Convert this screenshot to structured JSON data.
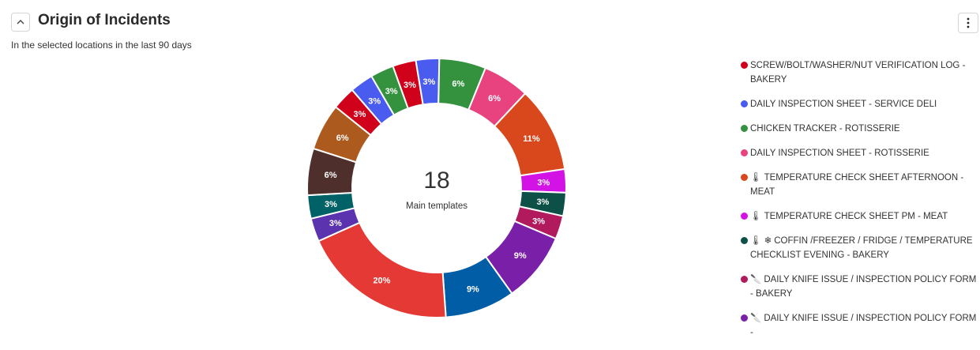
{
  "header": {
    "title": "Origin of Incidents",
    "subtitle": "In the selected locations in the last 90 days",
    "collapse_icon": "chevron-up-icon",
    "menu_icon": "kebab-menu-icon"
  },
  "center": {
    "value": "18",
    "label": "Main templates"
  },
  "chart_data": {
    "type": "pie",
    "donut": true,
    "slices": [
      {
        "label": "3%",
        "value": 3,
        "color": "#d0021b"
      },
      {
        "label": "3%",
        "value": 3,
        "color": "#4a5cf0"
      },
      {
        "label": "6%",
        "value": 6,
        "color": "#34923f"
      },
      {
        "label": "6%",
        "value": 6,
        "color": "#e8437e"
      },
      {
        "label": "11%",
        "value": 11,
        "color": "#d9481c"
      },
      {
        "label": "3%",
        "value": 3,
        "color": "#d313e6"
      },
      {
        "label": "3%",
        "value": 3,
        "color": "#0c5047"
      },
      {
        "label": "3%",
        "value": 3,
        "color": "#b11a5c"
      },
      {
        "label": "9%",
        "value": 9,
        "color": "#7a1fa8"
      },
      {
        "label": "9%",
        "value": 9,
        "color": "#005da6"
      },
      {
        "label": "20%",
        "value": 20,
        "color": "#e53935"
      },
      {
        "label": "3%",
        "value": 3,
        "color": "#5c33ae"
      },
      {
        "label": "3%",
        "value": 3,
        "color": "#006266"
      },
      {
        "label": "6%",
        "value": 6,
        "color": "#4e2f2c"
      },
      {
        "label": "6%",
        "value": 6,
        "color": "#ad5a1f"
      },
      {
        "label": "3%",
        "value": 3,
        "color": "#d0021b"
      },
      {
        "label": "3%",
        "value": 3,
        "color": "#4a5cf0"
      },
      {
        "label": "3%",
        "value": 3,
        "color": "#34923f"
      }
    ],
    "legend": [
      {
        "text": "SCREW/BOLT/WASHER/NUT VERIFICATION LOG - BAKERY",
        "color": "#d0021b",
        "glyphs": []
      },
      {
        "text": "DAILY INSPECTION SHEET - SERVICE DELI",
        "color": "#4a5cf0",
        "glyphs": []
      },
      {
        "text": "CHICKEN TRACKER - ROTISSERIE",
        "color": "#34923f",
        "glyphs": []
      },
      {
        "text": "DAILY INSPECTION SHEET - ROTISSERIE",
        "color": "#e8437e",
        "glyphs": []
      },
      {
        "text": "TEMPERATURE CHECK SHEET AFTERNOON - MEAT",
        "color": "#d9481c",
        "glyphs": [
          "thermometer-icon"
        ]
      },
      {
        "text": "TEMPERATURE CHECK SHEET PM - MEAT",
        "color": "#d313e6",
        "glyphs": [
          "thermometer-icon"
        ]
      },
      {
        "text": "COFFIN /FREEZER / FRIDGE / TEMPERATURE CHECKLIST EVENING - BAKERY",
        "color": "#0c5047",
        "glyphs": [
          "thermometer-icon",
          "snowflake-icon"
        ]
      },
      {
        "text": "DAILY KNIFE ISSUE / INSPECTION POLICY FORM - BAKERY",
        "color": "#b11a5c",
        "glyphs": [
          "knife-icon"
        ]
      },
      {
        "text": "DAILY KNIFE ISSUE / INSPECTION POLICY FORM -",
        "color": "#7a1fa8",
        "glyphs": [
          "knife-icon"
        ]
      }
    ]
  }
}
